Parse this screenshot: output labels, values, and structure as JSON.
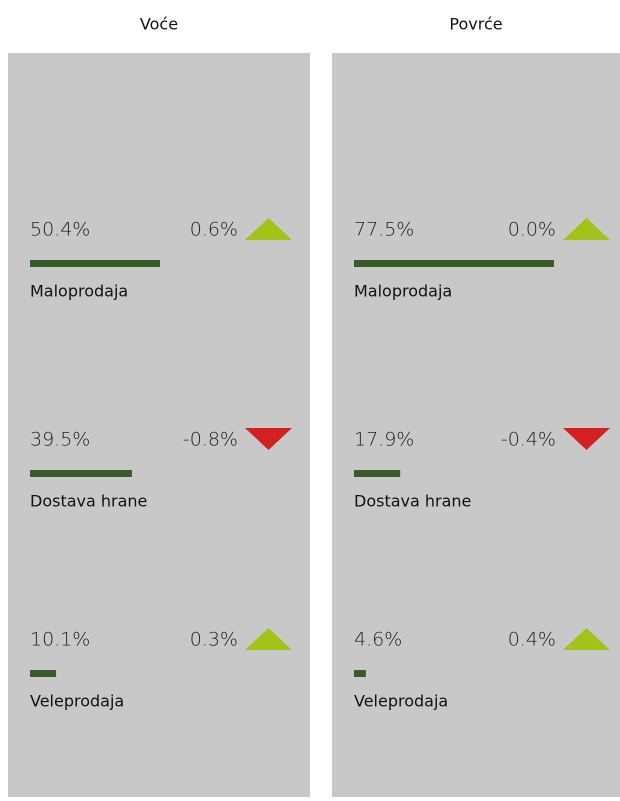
{
  "panels": [
    {
      "title": "Voće",
      "categories": [
        "Maloprodaja",
        "Dostava hrane",
        "Veleprodaja"
      ],
      "values": [
        50.4,
        39.5,
        10.1
      ],
      "value_labels": [
        "50.4%",
        "39.5%",
        "10.1%"
      ],
      "changes": [
        0.6,
        -0.8,
        0.3
      ],
      "change_labels": [
        "0.6%",
        "-0.8%",
        "0.3%"
      ]
    },
    {
      "title": "Povrće",
      "categories": [
        "Maloprodaja",
        "Dostava hrane",
        "Veleprodaja"
      ],
      "values": [
        77.5,
        17.9,
        4.6
      ],
      "value_labels": [
        "77.5%",
        "17.9%",
        "4.6%"
      ],
      "changes": [
        0.0,
        -0.4,
        0.4
      ],
      "change_labels": [
        "0.0%",
        "-0.4%",
        "0.4%"
      ]
    }
  ]
}
